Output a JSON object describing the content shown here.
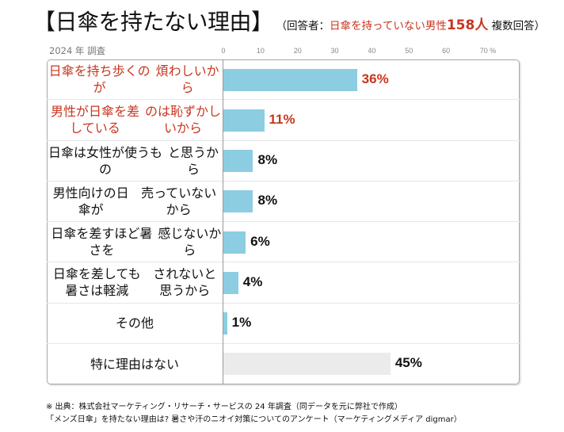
{
  "title": {
    "main": "【日傘を持たない理由】",
    "sub_open": "（回答者：",
    "sub_red": "日傘を持っていない男性",
    "sub_count": "158人",
    "sub_close": " 複数回答）"
  },
  "survey_year": "2024 年 調査",
  "colors": {
    "bar": "#8ccde2",
    "bar_other": "#ebebeb",
    "highlight": "#c8361f",
    "text": "#111111"
  },
  "chart_data": {
    "type": "bar",
    "orientation": "horizontal",
    "title": "【日傘を持たない理由】",
    "subtitle": "（回答者：日傘を持っていない男性158人 複数回答）",
    "xlabel": "%",
    "ylabel": "",
    "xlim": [
      0,
      70
    ],
    "x_ticks": [
      "0",
      "10",
      "20",
      "30",
      "40",
      "50",
      "60",
      "70 %"
    ],
    "grid": false,
    "categories": [
      "日傘を持ち歩くのが\n煩わしいから",
      "男性が日傘を差しているのは恥ずかしいから",
      "日傘は女性が使うもの\nと思うから",
      "男性向けの日傘が\n売っていないから",
      "日傘を差すほど暑さを\n感じないから",
      "日傘を差しても暑さは軽減\nされないと思うから",
      "その他",
      "特に理由はない"
    ],
    "category_lines": [
      [
        "日傘を持ち歩くのが",
        "煩わしいから"
      ],
      [
        "男性が日傘を差している",
        "のは恥ずかしいから"
      ],
      [
        "日傘は女性が使うもの",
        "と思うから"
      ],
      [
        "男性向けの日傘が",
        "売っていないから"
      ],
      [
        "日傘を差すほど暑さを",
        "感じないから"
      ],
      [
        "日傘を差しても暑さは軽減",
        "されないと思うから"
      ],
      [
        "その他"
      ],
      [
        "特に理由はない"
      ]
    ],
    "values": [
      36,
      11,
      8,
      8,
      6,
      4,
      1,
      45
    ],
    "value_labels": [
      "36%",
      "11%",
      "8%",
      "8%",
      "6%",
      "4%",
      "1%",
      "45%"
    ],
    "highlighted": [
      true,
      true,
      false,
      false,
      false,
      false,
      false,
      false
    ],
    "bar_style": [
      "blue",
      "blue",
      "blue",
      "blue",
      "blue",
      "blue",
      "blue",
      "gray"
    ]
  },
  "footnotes": [
    "※ 出典：株式会社マーケティング・リサーチ・サービスの 24 年調査（同データを元に弊社で作成）",
    "「メンズ日傘」を持たない理由は? 暑さや汗のニオイ対策についてのアンケート（マーケティングメディア digmar）"
  ]
}
